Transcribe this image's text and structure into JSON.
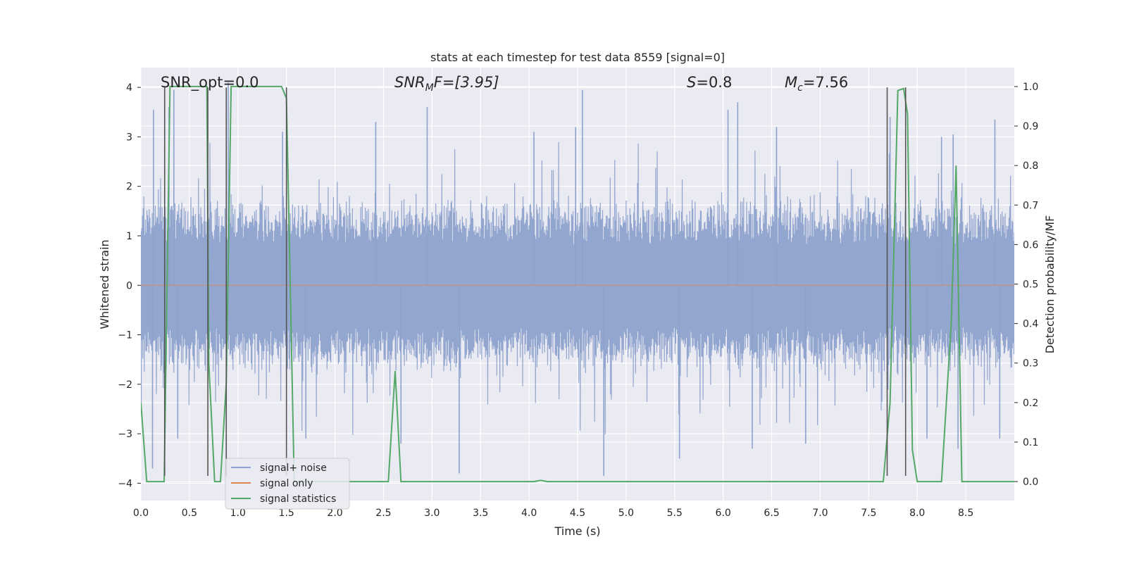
{
  "chart_data": {
    "type": "line",
    "title": "stats at each timestep for test data 8559 [signal=0]",
    "xlabel": "Time (s)",
    "ylabel": "Whitened strain",
    "ylabel_right": "Detection probability/MF",
    "xlim": [
      0.0,
      9.0
    ],
    "ylim": [
      -4.35,
      4.4
    ],
    "ylim_right": [
      -0.048,
      1.048
    ],
    "xticks": [
      0.0,
      0.5,
      1.0,
      1.5,
      2.0,
      2.5,
      3.0,
      3.5,
      4.0,
      4.5,
      5.0,
      5.5,
      6.0,
      6.5,
      7.0,
      7.5,
      8.0,
      8.5
    ],
    "xtick_labels": [
      "0.0",
      "0.5",
      "1.0",
      "1.5",
      "2.0",
      "2.5",
      "3.0",
      "3.5",
      "4.0",
      "4.5",
      "5.0",
      "5.5",
      "6.0",
      "6.5",
      "7.0",
      "7.5",
      "8.0",
      "8.5"
    ],
    "yticks": [
      -4,
      -3,
      -2,
      -1,
      0,
      1,
      2,
      3,
      4
    ],
    "ytick_labels": [
      "−4",
      "−3",
      "−2",
      "−1",
      "0",
      "1",
      "2",
      "3",
      "4"
    ],
    "yticks_right": [
      0.0,
      0.1,
      0.2,
      0.3,
      0.4,
      0.5,
      0.6,
      0.7,
      0.8,
      0.9,
      1.0
    ],
    "ytick_labels_right": [
      "0.0",
      "0.1",
      "0.2",
      "0.3",
      "0.4",
      "0.5",
      "0.6",
      "0.7",
      "0.8",
      "0.9",
      "1.0"
    ],
    "annotations": {
      "snr_opt": "SNR_opt=0.0",
      "snr_mf_main": "SNR",
      "snr_mf_sub": "M",
      "snr_mf_rest": "F=[3.95]",
      "s_main": "S",
      "s_rest": "=0.8",
      "mc_main": "M",
      "mc_sub": "c",
      "mc_rest": "=7.56"
    },
    "legend": {
      "position": "lower-left",
      "entries": [
        "signal+ noise",
        "signal only",
        "signal statistics"
      ]
    },
    "colors": {
      "noise": "#8da2cc",
      "signal_only": "#dd8452",
      "statistics": "#55a868",
      "vlines": "#555555",
      "background": "#eaeaf2",
      "grid": "#ffffff"
    },
    "noise_series": {
      "name": "signal+ noise",
      "sample_rate": 256,
      "duration": 9.0,
      "base_envelope": 1.6,
      "seed": 8559,
      "prominent_spikes": [
        {
          "x": 0.12,
          "y": -3.7
        },
        {
          "x": 0.13,
          "y": 3.55
        },
        {
          "x": 0.29,
          "y": 3.6
        },
        {
          "x": 0.34,
          "y": 3.95
        },
        {
          "x": 0.38,
          "y": -3.1
        },
        {
          "x": 0.9,
          "y": 4.1
        },
        {
          "x": 1.46,
          "y": 3.1
        },
        {
          "x": 1.7,
          "y": -3.1
        },
        {
          "x": 2.42,
          "y": 3.3
        },
        {
          "x": 2.68,
          "y": -3.2
        },
        {
          "x": 2.95,
          "y": 3.6
        },
        {
          "x": 3.28,
          "y": -3.8
        },
        {
          "x": 4.05,
          "y": 3.1
        },
        {
          "x": 4.48,
          "y": 3.2
        },
        {
          "x": 4.55,
          "y": 3.95
        },
        {
          "x": 4.77,
          "y": -3.85
        },
        {
          "x": 5.55,
          "y": -3.5
        },
        {
          "x": 6.05,
          "y": 3.55
        },
        {
          "x": 6.15,
          "y": 3.7
        },
        {
          "x": 6.3,
          "y": -3.3
        },
        {
          "x": 6.55,
          "y": 3.2
        },
        {
          "x": 6.85,
          "y": -3.2
        },
        {
          "x": 7.72,
          "y": 3.4
        },
        {
          "x": 8.1,
          "y": -3.1
        },
        {
          "x": 8.25,
          "y": 3.0
        },
        {
          "x": 8.37,
          "y": 3.05
        },
        {
          "x": 8.42,
          "y": -3.3
        },
        {
          "x": 8.8,
          "y": 3.35
        },
        {
          "x": 8.85,
          "y": -3.1
        }
      ]
    },
    "signal_only_series": {
      "name": "signal only",
      "x": [
        0.0,
        9.0
      ],
      "y": [
        0.0,
        0.0
      ]
    },
    "statistics_series": {
      "name": "signal statistics",
      "x": [
        0.0,
        0.06,
        0.17,
        0.24,
        0.3,
        0.32,
        0.68,
        0.7,
        0.76,
        0.82,
        0.88,
        0.93,
        1.45,
        1.5,
        1.58,
        2.55,
        2.62,
        2.68,
        4.05,
        4.12,
        4.19,
        6.1,
        7.65,
        7.72,
        7.8,
        7.86,
        7.9,
        7.95,
        8.0,
        8.25,
        8.35,
        8.4,
        8.46,
        9.0
      ],
      "y": [
        0.2,
        0.0,
        0.0,
        0.0,
        1.0,
        1.0,
        1.0,
        0.3,
        0.0,
        0.0,
        0.25,
        1.0,
        1.0,
        0.97,
        0.0,
        0.0,
        0.28,
        0.0,
        0.0,
        0.003,
        0.0,
        0.0,
        0.0,
        0.2,
        0.99,
        0.995,
        0.93,
        0.08,
        0.0,
        0.0,
        0.4,
        0.8,
        0.0,
        0.0
      ]
    },
    "vertical_lines": [
      0.245,
      0.69,
      0.88,
      1.5,
      7.69,
      7.88
    ],
    "vertical_lines_range": [
      -3.85,
      4.0
    ]
  }
}
